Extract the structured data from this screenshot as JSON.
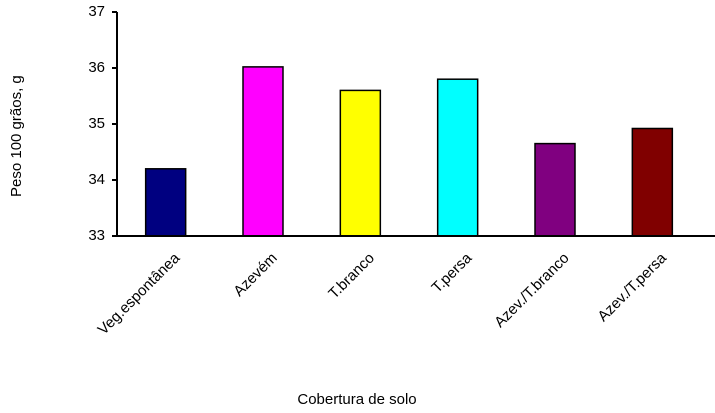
{
  "chart_data": {
    "type": "bar",
    "y_label": "Peso 100 grãos, g",
    "x_label": "Cobertura de solo",
    "categories": [
      "Veg.espontânea",
      "Azevém",
      "T.branco",
      "T.persa",
      "Azev./T.branco",
      "Azev./T.persa"
    ],
    "values": [
      34.2,
      36.02,
      35.6,
      35.8,
      34.65,
      34.92
    ],
    "colors": [
      "#000080",
      "#ff00ff",
      "#ffff00",
      "#00ffff",
      "#800080",
      "#800000"
    ],
    "ylim": [
      33,
      37
    ],
    "yticks": [
      33,
      34,
      35,
      36,
      37
    ]
  }
}
